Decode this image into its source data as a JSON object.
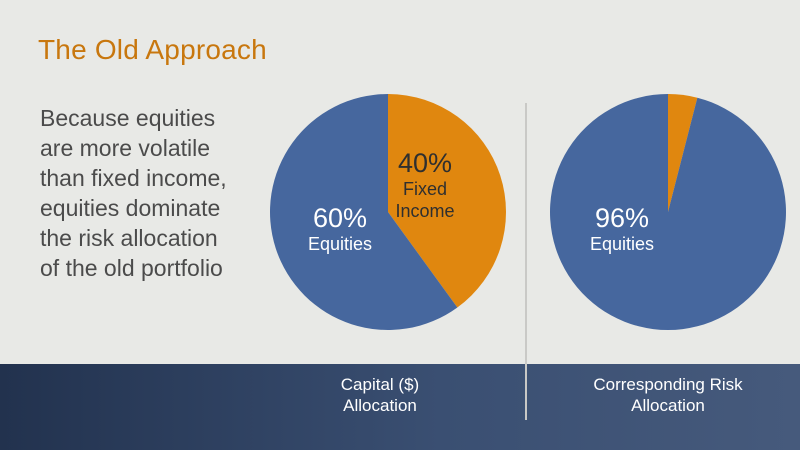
{
  "slide": {
    "title": "The Old Approach",
    "body_lines": [
      "Because equities",
      "are more volatile",
      "than fixed income,",
      "equities dominate",
      "the risk allocation",
      "of the old portfolio"
    ]
  },
  "colors": {
    "title": "#c8770e",
    "equities": "#46679e",
    "fixed_income": "#e0870f",
    "background": "#e8e9e6",
    "band": "#2d3e5e"
  },
  "chart_data": [
    {
      "type": "pie",
      "caption_lines": [
        "Capital ($)",
        "Allocation"
      ],
      "slices": [
        {
          "name": "Fixed Income",
          "pct_label": "40%",
          "sub_lines": [
            "Fixed",
            "Income"
          ],
          "value": 40,
          "color": "#e0870f"
        },
        {
          "name": "Equities",
          "pct_label": "60%",
          "sub_lines": [
            "Equities"
          ],
          "value": 60,
          "color": "#46679e"
        }
      ]
    },
    {
      "type": "pie",
      "caption_lines": [
        "Corresponding Risk",
        "Allocation"
      ],
      "slices": [
        {
          "name": "Fixed Income",
          "pct_label": "",
          "sub_lines": [],
          "value": 4,
          "color": "#e0870f"
        },
        {
          "name": "Equities",
          "pct_label": "96%",
          "sub_lines": [
            "Equities"
          ],
          "value": 96,
          "color": "#46679e"
        }
      ]
    }
  ]
}
